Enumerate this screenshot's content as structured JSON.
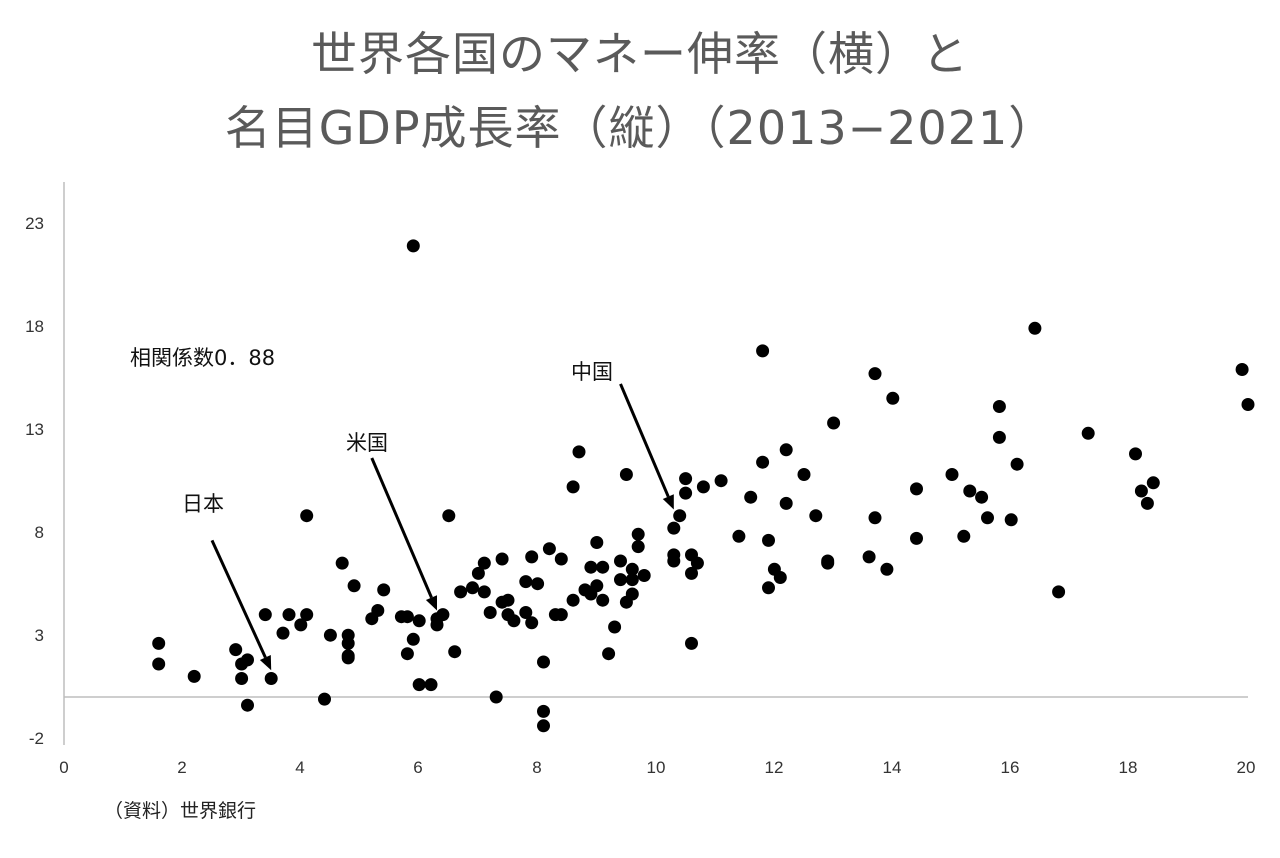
{
  "title_line1": "世界各国のマネー伸率（横）と",
  "title_line2": "名目GDP成長率（縦）（2013−2021）",
  "source": "（資料）世界銀行",
  "annotations": {
    "correlation": "相関係数0．88",
    "japan": "日本",
    "usa": "米国",
    "china": "中国"
  },
  "chart_data": {
    "type": "scatter",
    "title": "世界各国のマネー伸率（横）と名目GDP成長率（縦）（2013−2021）",
    "xlabel": "",
    "ylabel": "",
    "xlim": [
      0,
      20
    ],
    "ylim": [
      -2,
      25
    ],
    "x_ticks": [
      "0",
      "2",
      "4",
      "6",
      "8",
      "10",
      "12",
      "14",
      "16",
      "18",
      "20"
    ],
    "y_ticks": [
      "23",
      "18",
      "13",
      "8",
      "3",
      "-2"
    ],
    "grid": false,
    "series": [
      {
        "points": [
          [
            1.6,
            2.6
          ],
          [
            1.6,
            1.6
          ],
          [
            2.2,
            1.0
          ],
          [
            2.9,
            2.3
          ],
          [
            3.0,
            1.6
          ],
          [
            3.1,
            1.8
          ],
          [
            3.0,
            0.9
          ],
          [
            3.1,
            -0.4
          ],
          [
            3.5,
            0.9
          ],
          [
            3.4,
            4.0
          ],
          [
            3.7,
            3.1
          ],
          [
            3.8,
            4.0
          ],
          [
            4.0,
            3.5
          ],
          [
            4.1,
            4.0
          ],
          [
            4.1,
            8.8
          ],
          [
            4.4,
            -0.1
          ],
          [
            4.5,
            3.0
          ],
          [
            4.7,
            6.5
          ],
          [
            4.8,
            2.0
          ],
          [
            4.8,
            1.9
          ],
          [
            4.8,
            2.6
          ],
          [
            4.8,
            3.0
          ],
          [
            4.9,
            5.4
          ],
          [
            5.2,
            3.8
          ],
          [
            5.3,
            4.2
          ],
          [
            5.4,
            5.2
          ],
          [
            5.7,
            3.9
          ],
          [
            5.8,
            2.1
          ],
          [
            5.8,
            3.9
          ],
          [
            5.9,
            2.8
          ],
          [
            5.9,
            21.9
          ],
          [
            6.0,
            3.7
          ],
          [
            6.0,
            0.6
          ],
          [
            6.2,
            0.6
          ],
          [
            6.3,
            3.5
          ],
          [
            6.3,
            3.8
          ],
          [
            6.4,
            4.0
          ],
          [
            6.5,
            8.8
          ],
          [
            6.6,
            2.2
          ],
          [
            6.7,
            5.1
          ],
          [
            6.9,
            5.3
          ],
          [
            7.0,
            6.0
          ],
          [
            7.1,
            6.5
          ],
          [
            7.1,
            5.1
          ],
          [
            7.2,
            4.1
          ],
          [
            7.3,
            0.0
          ],
          [
            7.4,
            4.6
          ],
          [
            7.4,
            6.7
          ],
          [
            7.5,
            4.0
          ],
          [
            7.5,
            4.7
          ],
          [
            7.6,
            3.7
          ],
          [
            7.8,
            4.1
          ],
          [
            7.8,
            5.6
          ],
          [
            7.9,
            3.6
          ],
          [
            7.9,
            6.8
          ],
          [
            8.0,
            5.5
          ],
          [
            8.1,
            -0.7
          ],
          [
            8.1,
            -1.4
          ],
          [
            8.1,
            1.7
          ],
          [
            8.2,
            7.2
          ],
          [
            8.3,
            4.0
          ],
          [
            8.4,
            4.0
          ],
          [
            8.4,
            6.7
          ],
          [
            8.6,
            10.2
          ],
          [
            8.6,
            4.7
          ],
          [
            8.7,
            11.9
          ],
          [
            8.8,
            5.2
          ],
          [
            8.9,
            6.3
          ],
          [
            8.9,
            5.0
          ],
          [
            9.0,
            5.4
          ],
          [
            9.0,
            7.5
          ],
          [
            9.1,
            6.3
          ],
          [
            9.1,
            4.7
          ],
          [
            9.2,
            2.1
          ],
          [
            9.3,
            3.4
          ],
          [
            9.4,
            6.6
          ],
          [
            9.4,
            5.7
          ],
          [
            9.5,
            10.8
          ],
          [
            9.5,
            4.6
          ],
          [
            9.6,
            6.2
          ],
          [
            9.6,
            5.7
          ],
          [
            9.6,
            5.0
          ],
          [
            9.7,
            7.3
          ],
          [
            9.7,
            7.9
          ],
          [
            9.8,
            5.9
          ],
          [
            10.3,
            6.9
          ],
          [
            10.3,
            8.2
          ],
          [
            10.3,
            6.6
          ],
          [
            10.4,
            8.8
          ],
          [
            10.5,
            9.9
          ],
          [
            10.5,
            10.6
          ],
          [
            10.6,
            6.9
          ],
          [
            10.6,
            6.0
          ],
          [
            10.6,
            2.6
          ],
          [
            10.7,
            6.5
          ],
          [
            10.8,
            10.2
          ],
          [
            11.1,
            10.5
          ],
          [
            11.4,
            7.8
          ],
          [
            11.6,
            9.7
          ],
          [
            11.8,
            16.8
          ],
          [
            11.8,
            11.4
          ],
          [
            11.9,
            7.6
          ],
          [
            11.9,
            5.3
          ],
          [
            12.0,
            6.2
          ],
          [
            12.1,
            5.8
          ],
          [
            12.2,
            9.4
          ],
          [
            12.2,
            12.0
          ],
          [
            12.5,
            10.8
          ],
          [
            12.7,
            8.8
          ],
          [
            12.9,
            6.5
          ],
          [
            12.9,
            6.6
          ],
          [
            13.0,
            13.3
          ],
          [
            13.6,
            6.8
          ],
          [
            13.7,
            8.7
          ],
          [
            13.7,
            15.7
          ],
          [
            13.9,
            6.2
          ],
          [
            14.0,
            14.5
          ],
          [
            14.4,
            10.1
          ],
          [
            14.4,
            7.7
          ],
          [
            15.0,
            10.8
          ],
          [
            15.2,
            7.8
          ],
          [
            15.3,
            10.0
          ],
          [
            15.5,
            9.7
          ],
          [
            15.6,
            8.7
          ],
          [
            15.8,
            14.1
          ],
          [
            15.8,
            12.6
          ],
          [
            16.0,
            8.6
          ],
          [
            16.1,
            11.3
          ],
          [
            16.4,
            17.9
          ],
          [
            16.8,
            5.1
          ],
          [
            17.3,
            12.8
          ],
          [
            18.1,
            11.8
          ],
          [
            18.2,
            10.0
          ],
          [
            18.3,
            9.4
          ],
          [
            18.4,
            10.4
          ],
          [
            19.9,
            15.9
          ],
          [
            20.0,
            14.2
          ]
        ]
      }
    ],
    "arrows": [
      {
        "label": "日本",
        "from": [
          2.5,
          7.6
        ],
        "to": [
          3.5,
          1.3
        ]
      },
      {
        "label": "米国",
        "from": [
          5.2,
          11.6
        ],
        "to": [
          6.3,
          4.2
        ]
      },
      {
        "label": "中国",
        "from": [
          9.4,
          15.2
        ],
        "to": [
          10.3,
          9.1
        ]
      }
    ]
  }
}
